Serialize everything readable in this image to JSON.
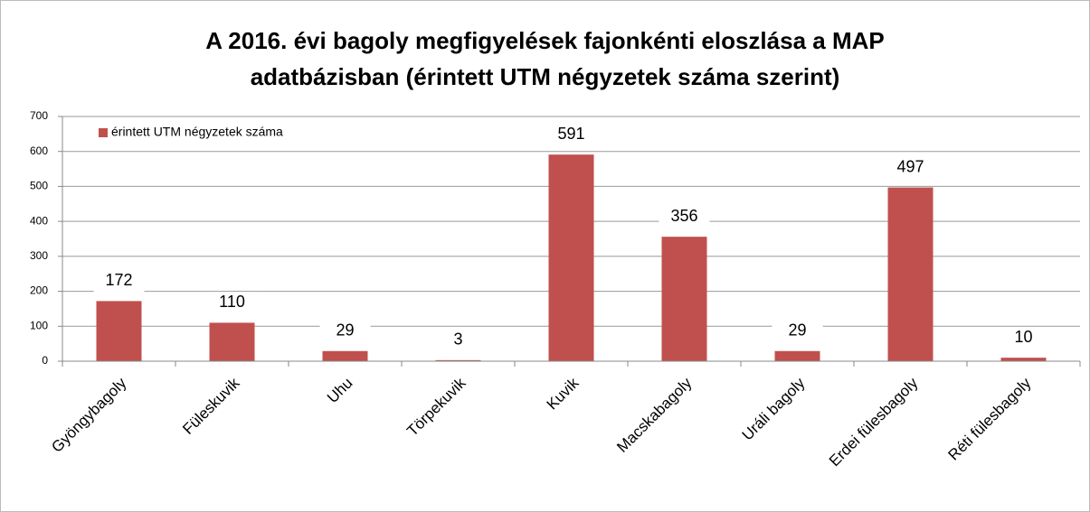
{
  "chart_data": {
    "type": "bar",
    "title": "A 2016. évi bagoly megfigyelések fajonkénti eloszlása a MAP adatbázisban (érintett UTM négyzetek száma szerint)",
    "categories": [
      "Gyöngybagoly",
      "Füleskuvik",
      "Uhu",
      "Törpekuvik",
      "Kuvik",
      "Macskabagoly",
      "Uráli bagoly",
      "Erdei fülesbagoly",
      "Réti fülesbagoly"
    ],
    "series": [
      {
        "name": "érintett UTM négyzetek száma",
        "color": "#c0504d",
        "values": [
          172,
          110,
          29,
          3,
          591,
          356,
          29,
          497,
          10
        ]
      }
    ],
    "ylim": [
      0,
      700
    ],
    "yticks": [
      0,
      100,
      200,
      300,
      400,
      500,
      600,
      700
    ],
    "grid": true,
    "legend": "top-left"
  }
}
